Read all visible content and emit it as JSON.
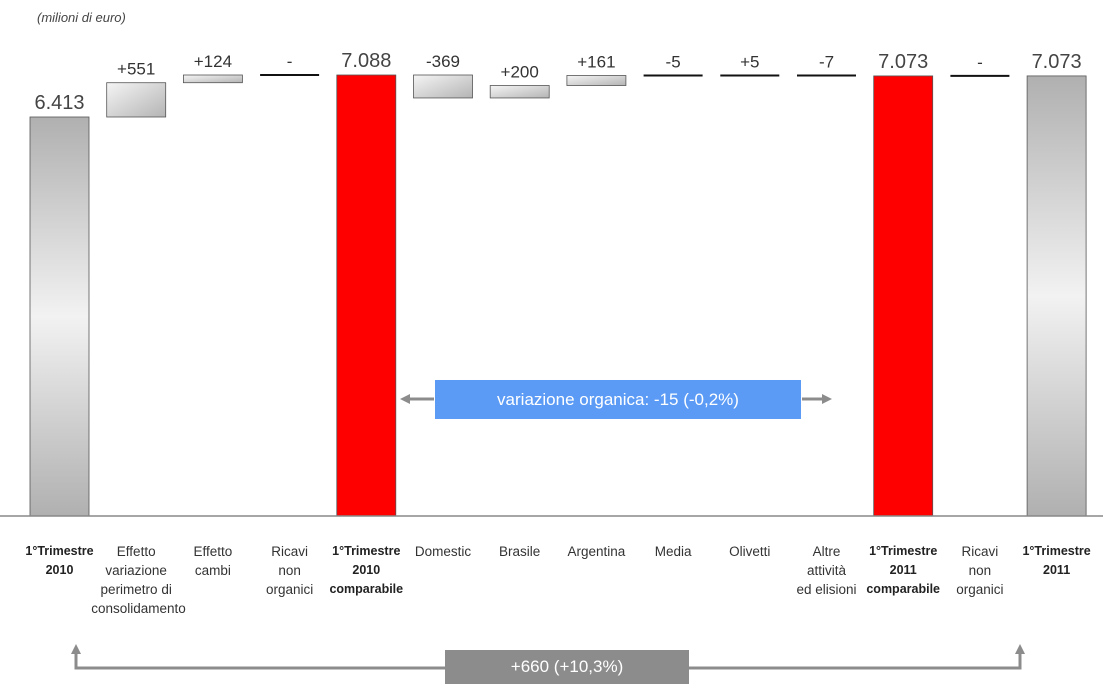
{
  "chart_data": {
    "type": "waterfall",
    "unit_label": "(milioni di euro)",
    "ylim": [
      0,
      7500
    ],
    "steps": [
      {
        "category": "1°Trimestre 2010",
        "kind": "total",
        "value": 6413,
        "label": "6.413",
        "color": "gray"
      },
      {
        "category": "Effetto variazione perimetro di consolidamento",
        "kind": "delta",
        "value": 551,
        "label": "+551"
      },
      {
        "category": "Effetto cambi",
        "kind": "delta",
        "value": 124,
        "label": "+124"
      },
      {
        "category": "Ricavi non organici",
        "kind": "delta",
        "value": 0,
        "label": "-"
      },
      {
        "category": "1°Trimestre 2010 comparabile",
        "kind": "total",
        "value": 7088,
        "label": "7.088",
        "color": "red"
      },
      {
        "category": "Domestic",
        "kind": "delta",
        "value": -369,
        "label": "-369"
      },
      {
        "category": "Brasile",
        "kind": "delta",
        "value": 200,
        "label": "+200"
      },
      {
        "category": "Argentina",
        "kind": "delta",
        "value": 161,
        "label": "+161"
      },
      {
        "category": "Media",
        "kind": "delta",
        "value": -5,
        "label": "-5"
      },
      {
        "category": "Olivetti",
        "kind": "delta",
        "value": 5,
        "label": "+5"
      },
      {
        "category": "Altre attività ed elisioni",
        "kind": "delta",
        "value": -7,
        "label": "-7"
      },
      {
        "category": "1°Trimestre 2011 comparabile",
        "kind": "total",
        "value": 7073,
        "label": "7.073",
        "color": "red"
      },
      {
        "category": "Ricavi non organici",
        "kind": "delta",
        "value": 0,
        "label": "-"
      },
      {
        "category": "1°Trimestre 2011",
        "kind": "total",
        "value": 7073,
        "label": "7.073",
        "color": "gray"
      }
    ],
    "annotations": {
      "organic": "variazione organica: -15 (-0,2%)",
      "total": "+660 (+10,3%)"
    }
  },
  "category_lines": [
    [
      "1°Trimestre",
      "2010"
    ],
    [
      "Effetto",
      "variazione",
      "perimetro di",
      "consolidamento"
    ],
    [
      "Effetto",
      "cambi"
    ],
    [
      "Ricavi",
      "non",
      "organici"
    ],
    [
      "1°Trimestre",
      "2010",
      "comparabile"
    ],
    [
      "Domestic"
    ],
    [
      "Brasile"
    ],
    [
      "Argentina"
    ],
    [
      "Media"
    ],
    [
      "Olivetti"
    ],
    [
      "Altre",
      "attività",
      "ed elisioni"
    ],
    [
      "1°Trimestre",
      "2011",
      "comparabile"
    ],
    [
      "Ricavi",
      "non",
      "organici"
    ],
    [
      "1°Trimestre",
      "2011"
    ]
  ],
  "colors": {
    "red": "#ff0000",
    "gray_light": "#f2f2f2",
    "gray_dark": "#b0b0b0",
    "organic_box": "#5b9bf6",
    "total_box": "#8c8c8c",
    "arrow": "#8c8c8c"
  }
}
